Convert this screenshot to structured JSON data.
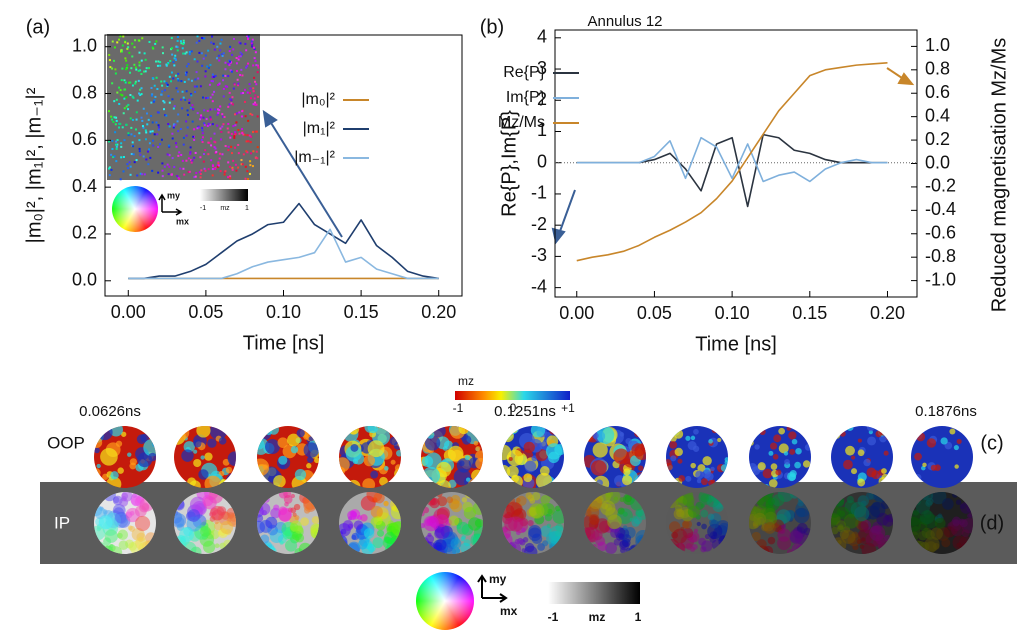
{
  "chart_data": [
    {
      "type": "line",
      "panel_label": "(a)",
      "xlabel": "Time [ns]",
      "ylabel": "|m₀|², |m₁|², |m₋₁|²",
      "x": [
        0,
        0.01,
        0.02,
        0.03,
        0.04,
        0.05,
        0.06,
        0.07,
        0.08,
        0.09,
        0.1,
        0.11,
        0.12,
        0.13,
        0.14,
        0.15,
        0.16,
        0.17,
        0.18,
        0.19,
        0.2
      ],
      "series": [
        {
          "name": "|m₀|²",
          "color": "#c8862a",
          "values": [
            0.01,
            0.01,
            0.01,
            0.01,
            0.01,
            0.01,
            0.01,
            0.01,
            0.01,
            0.01,
            0.01,
            0.01,
            0.01,
            0.01,
            0.01,
            0.01,
            0.01,
            0.01,
            0.01,
            0.01,
            0.01
          ]
        },
        {
          "name": "|m₁|²",
          "color": "#1f3e6e",
          "values": [
            0.01,
            0.01,
            0.02,
            0.02,
            0.04,
            0.07,
            0.12,
            0.17,
            0.2,
            0.24,
            0.25,
            0.33,
            0.24,
            0.2,
            0.16,
            0.26,
            0.15,
            0.1,
            0.04,
            0.02,
            0.01
          ]
        },
        {
          "name": "|m₋₁|²",
          "color": "#8ab8e0",
          "values": [
            0.01,
            0.01,
            0.01,
            0.01,
            0.01,
            0.01,
            0.01,
            0.03,
            0.06,
            0.08,
            0.09,
            0.1,
            0.12,
            0.22,
            0.08,
            0.1,
            0.05,
            0.03,
            0.01,
            0.01,
            0.01
          ]
        }
      ],
      "xlim": [
        -0.015,
        0.215
      ],
      "xticks": [
        {
          "value": 0,
          "label": "0.00"
        },
        {
          "value": 0.05,
          "label": "0.05"
        },
        {
          "value": 0.1,
          "label": "0.10"
        },
        {
          "value": 0.15,
          "label": "0.15"
        },
        {
          "value": 0.2,
          "label": "0.20"
        }
      ],
      "ylim": [
        -0.065,
        1.05
      ],
      "yticks": [
        {
          "value": 0,
          "label": "0.0"
        },
        {
          "value": 0.2,
          "label": "0.2"
        },
        {
          "value": 0.4,
          "label": "0.4"
        },
        {
          "value": 0.6,
          "label": "0.6"
        },
        {
          "value": 0.8,
          "label": "0.8"
        },
        {
          "value": 1,
          "label": "1.0"
        }
      ],
      "grid": false
    },
    {
      "type": "line",
      "panel_label": "(b)",
      "title": "Annulus 12",
      "xlabel": "Time [ns]",
      "ylabel": "Re{P},Im{P}",
      "y2label": "Reduced magnetisation Mz/Ms",
      "x": [
        0,
        0.01,
        0.02,
        0.03,
        0.04,
        0.05,
        0.06,
        0.07,
        0.08,
        0.09,
        0.1,
        0.11,
        0.12,
        0.13,
        0.14,
        0.15,
        0.16,
        0.17,
        0.18,
        0.19,
        0.2
      ],
      "series": [
        {
          "name": "Re{P}",
          "color": "#2b3440",
          "values": [
            0,
            0,
            0,
            0,
            0,
            0.1,
            0.3,
            -0.2,
            -0.9,
            0.6,
            0.8,
            -1.4,
            0.9,
            0.8,
            0.4,
            0.3,
            0.1,
            0,
            0,
            0,
            0
          ]
        },
        {
          "name": "Im{P}",
          "color": "#7fb0dc",
          "values": [
            0,
            0,
            0,
            0,
            0,
            0.2,
            0.7,
            -0.5,
            0.8,
            0.5,
            -0.5,
            0.6,
            -0.6,
            -0.4,
            -0.3,
            -0.6,
            -0.2,
            0,
            0.1,
            0,
            0
          ]
        },
        {
          "name": "Mz/Ms",
          "color": "#c8862a",
          "axis": "y2",
          "values": [
            -0.83,
            -0.8,
            -0.78,
            -0.75,
            -0.7,
            -0.63,
            -0.57,
            -0.5,
            -0.42,
            -0.3,
            -0.15,
            0.05,
            0.25,
            0.45,
            0.6,
            0.75,
            0.8,
            0.82,
            0.84,
            0.85,
            0.86
          ]
        }
      ],
      "xlim": [
        -0.014,
        0.219
      ],
      "xticks": [
        {
          "value": 0,
          "label": "0.00"
        },
        {
          "value": 0.05,
          "label": "0.05"
        },
        {
          "value": 0.1,
          "label": "0.10"
        },
        {
          "value": 0.15,
          "label": "0.15"
        },
        {
          "value": 0.2,
          "label": "0.20"
        }
      ],
      "ylim": [
        -4.3,
        4.25
      ],
      "yticks": [
        -4,
        -3,
        -2,
        -1,
        0,
        1,
        2,
        3,
        4
      ],
      "y2lim": [
        -1.14,
        1.14
      ],
      "y2ticks": [
        {
          "value": -1,
          "label": "-1.0"
        },
        {
          "value": -0.8,
          "label": "-0.8"
        },
        {
          "value": -0.6,
          "label": "-0.6"
        },
        {
          "value": -0.4,
          "label": "-0.4"
        },
        {
          "value": -0.2,
          "label": "-0.2"
        },
        {
          "value": 0,
          "label": "0.0"
        },
        {
          "value": 0.2,
          "label": "0.2"
        },
        {
          "value": 0.4,
          "label": "0.4"
        },
        {
          "value": 0.6,
          "label": "0.6"
        },
        {
          "value": 0.8,
          "label": "0.8"
        },
        {
          "value": 1,
          "label": "1.0"
        }
      ],
      "grid": false
    }
  ],
  "figure": {
    "oop_label": "OOP",
    "ip_label": "IP",
    "panel_c": "(c)",
    "panel_d": "(d)",
    "times": [
      "0.0626ns",
      "0.1251ns",
      "0.1876ns"
    ],
    "colorbar": {
      "label": "mz",
      "ticks": [
        "-1",
        "0",
        "+1"
      ]
    },
    "key": {
      "my": "my",
      "mx": "mx",
      "scale": [
        "-1",
        "mz",
        "1"
      ]
    },
    "inset_key": {
      "my": "my",
      "mx": "mx",
      "scale": [
        "-1",
        "mz",
        "1"
      ]
    }
  }
}
